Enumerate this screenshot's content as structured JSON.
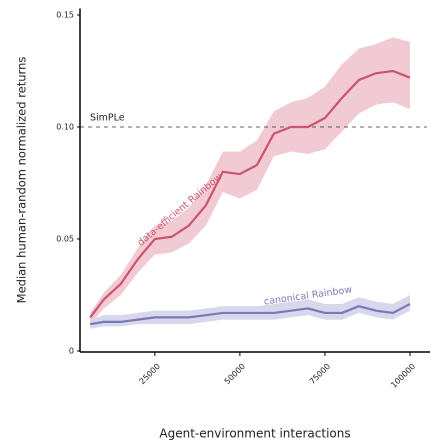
{
  "chart_data": {
    "type": "line",
    "xlabel": "Agent-environment interactions",
    "ylabel": "Median human-random normalized returns",
    "x": [
      6000,
      10000,
      15000,
      20000,
      25000,
      30000,
      35000,
      40000,
      45000,
      50000,
      55000,
      60000,
      65000,
      70000,
      75000,
      80000,
      85000,
      90000,
      95000,
      100000
    ],
    "series": [
      {
        "name": "data-efficient Rainbow",
        "color": "#c9566e",
        "band_color": "#f2cad3",
        "values": [
          0.015,
          0.023,
          0.03,
          0.041,
          0.05,
          0.051,
          0.056,
          0.065,
          0.08,
          0.079,
          0.083,
          0.097,
          0.1,
          0.1,
          0.104,
          0.113,
          0.121,
          0.124,
          0.125,
          0.122
        ],
        "upper": [
          0.017,
          0.026,
          0.034,
          0.046,
          0.056,
          0.058,
          0.064,
          0.074,
          0.089,
          0.089,
          0.094,
          0.107,
          0.111,
          0.113,
          0.118,
          0.128,
          0.135,
          0.137,
          0.14,
          0.138
        ],
        "lower": [
          0.012,
          0.019,
          0.025,
          0.035,
          0.043,
          0.044,
          0.048,
          0.056,
          0.071,
          0.068,
          0.072,
          0.087,
          0.089,
          0.088,
          0.09,
          0.098,
          0.106,
          0.11,
          0.111,
          0.108
        ]
      },
      {
        "name": "canonical Rainbow",
        "color": "#7b78b8",
        "band_color": "#d8d7ec",
        "values": [
          0.012,
          0.013,
          0.013,
          0.014,
          0.015,
          0.015,
          0.015,
          0.016,
          0.017,
          0.017,
          0.017,
          0.017,
          0.018,
          0.019,
          0.017,
          0.017,
          0.02,
          0.018,
          0.017,
          0.021
        ],
        "upper": [
          0.014,
          0.016,
          0.016,
          0.017,
          0.018,
          0.018,
          0.018,
          0.019,
          0.02,
          0.02,
          0.02,
          0.021,
          0.022,
          0.023,
          0.021,
          0.021,
          0.024,
          0.022,
          0.021,
          0.025
        ],
        "lower": [
          0.01,
          0.011,
          0.011,
          0.012,
          0.012,
          0.012,
          0.012,
          0.013,
          0.014,
          0.014,
          0.014,
          0.014,
          0.015,
          0.016,
          0.014,
          0.014,
          0.017,
          0.015,
          0.014,
          0.018
        ]
      }
    ],
    "reference": {
      "label": "SimPLe",
      "value": 0.1
    },
    "xlim": [
      3000,
      105000
    ],
    "ylim": [
      0,
      0.152
    ],
    "xticks": [
      25000,
      50000,
      75000,
      100000
    ],
    "yticks": [
      0,
      0.05,
      {
        "value": 0.1,
        "label": "0.10"
      },
      0.15
    ]
  }
}
